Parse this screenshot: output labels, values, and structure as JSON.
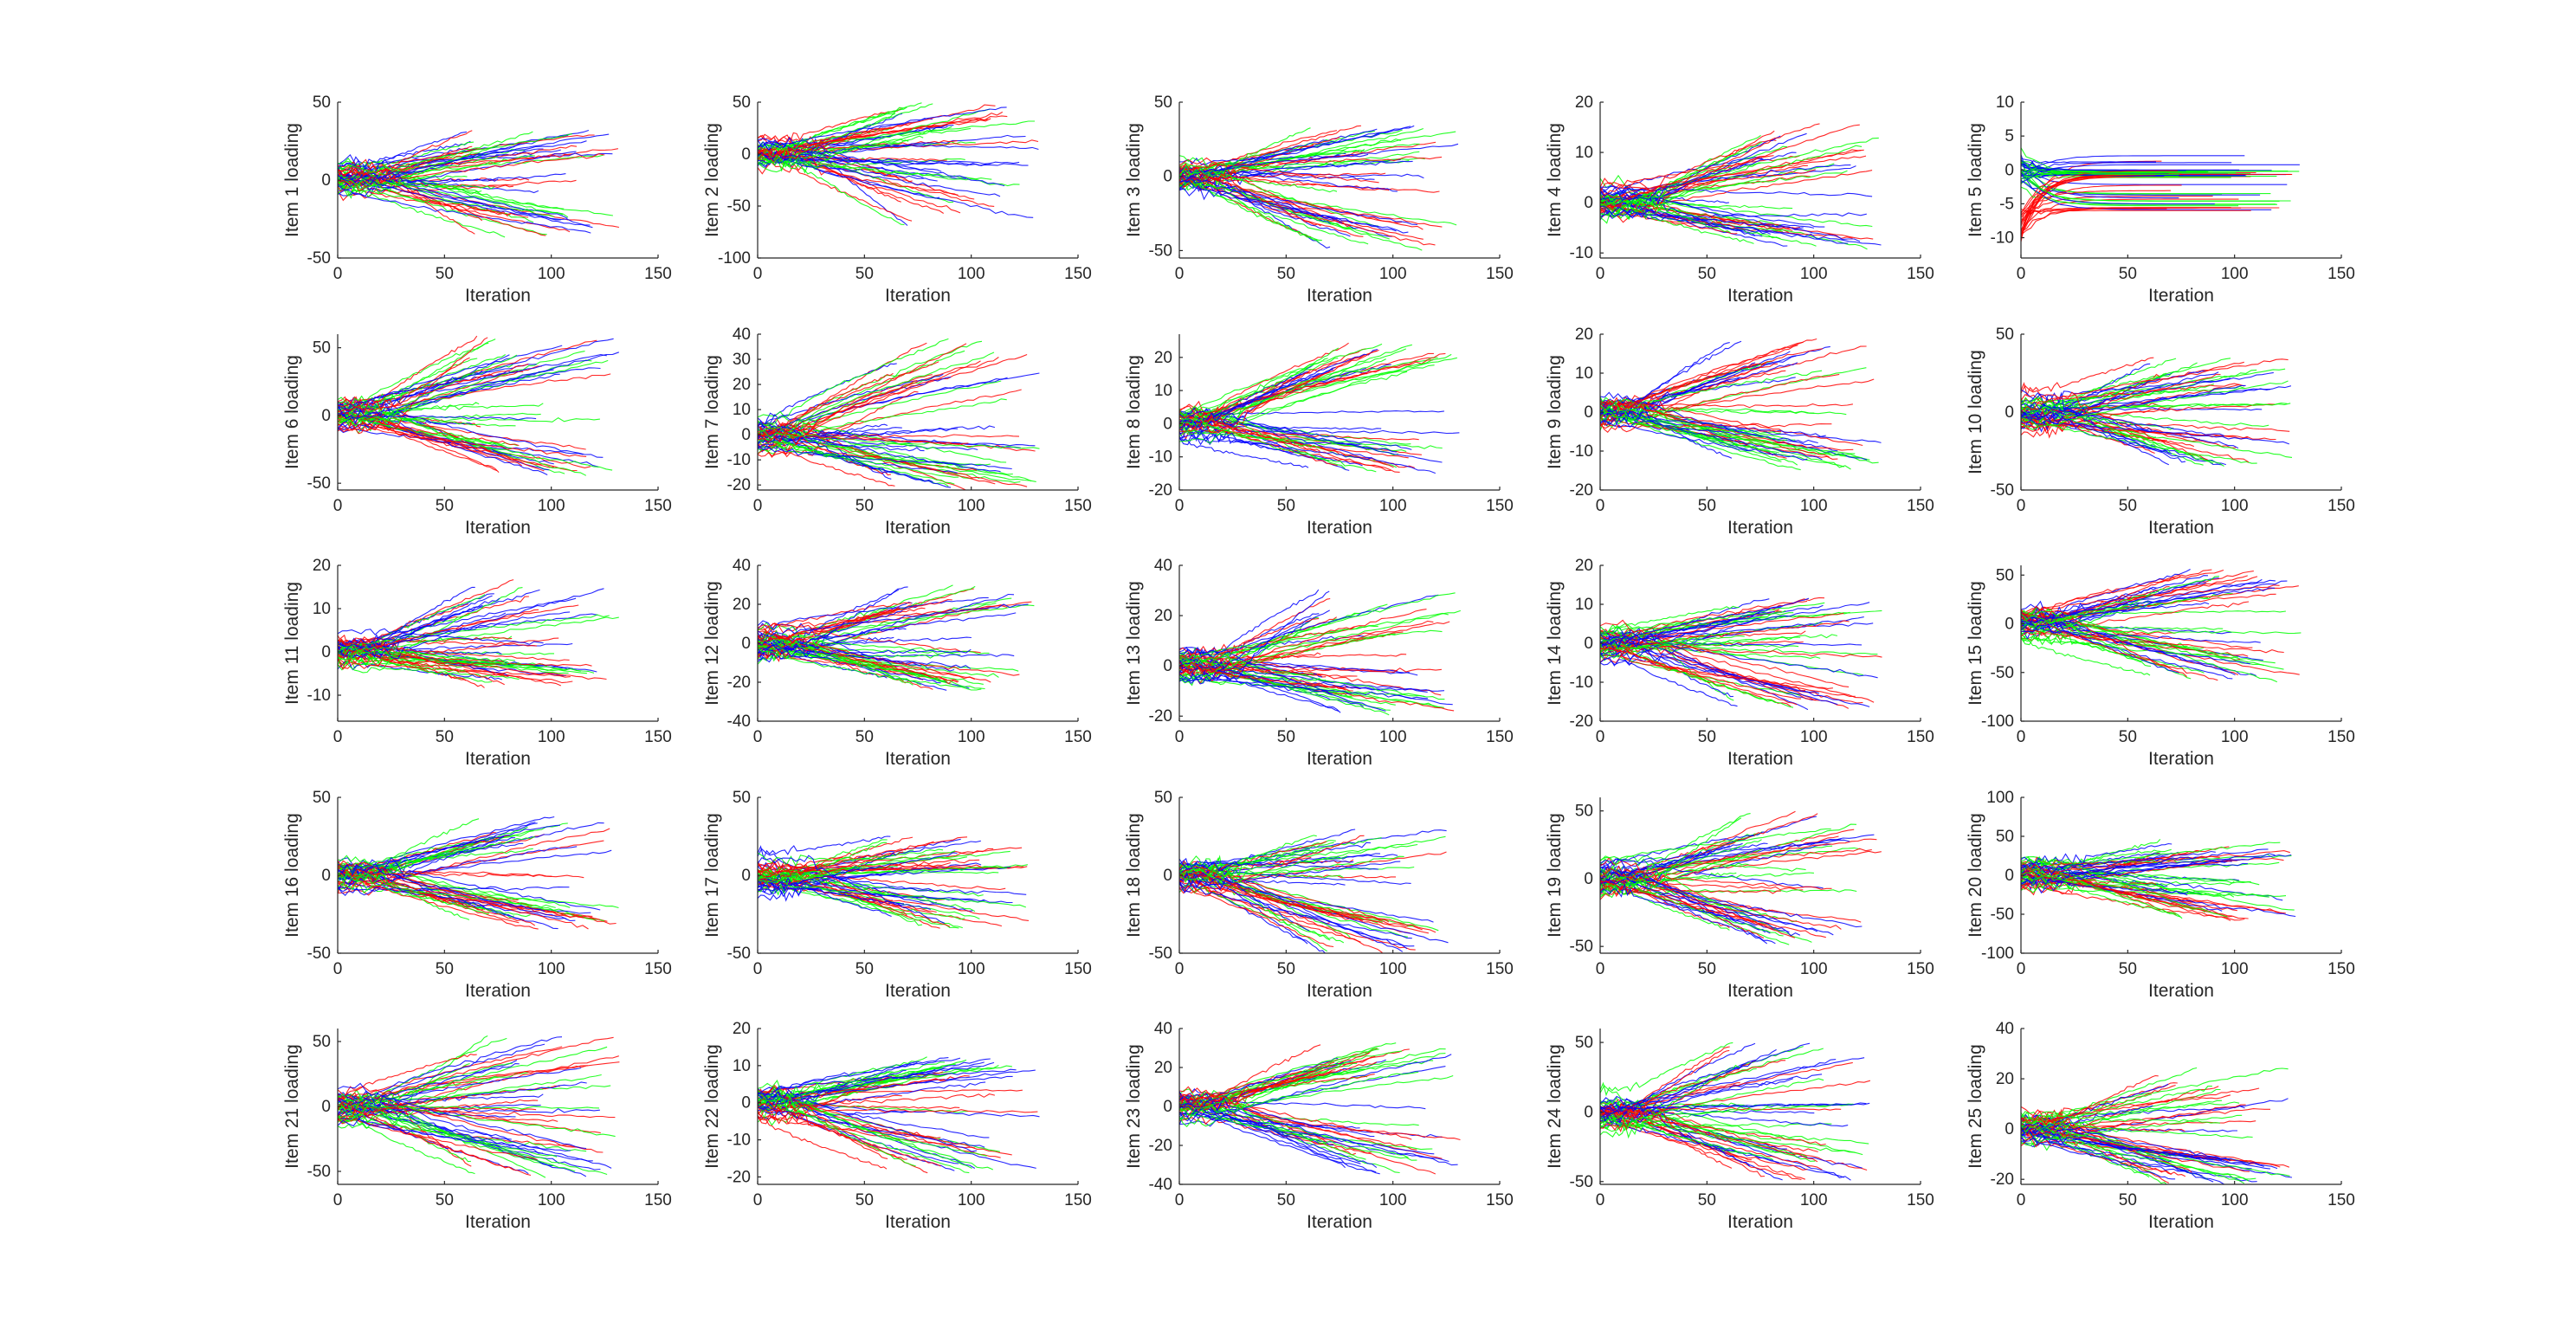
{
  "chart_data": {
    "type": "line",
    "layout": "5x5 grid of small-multiple line plots",
    "line_colors": {
      "red": "#ff0000",
      "green": "#00ff00",
      "blue": "#0000ff"
    },
    "note_series": "Each panel shows many overlaid trajectories (red, green, blue) fanning out from near 0 as iteration increases; trajectories end between about iteration 60 and 130.",
    "xlabel": "Iteration",
    "xlim": [
      0,
      150
    ],
    "xticks": [
      0,
      50,
      100,
      150
    ],
    "panels": [
      {
        "ylabel": "Item 1 loading",
        "ylim": [
          -50,
          50
        ],
        "yticks": [
          -50,
          0,
          50
        ],
        "upper": [
          15,
          32
        ],
        "lower": [
          -36,
          -18
        ],
        "conv": "sym"
      },
      {
        "ylabel": "Item 2 loading",
        "ylim": [
          -100,
          50
        ],
        "yticks": [
          -100,
          -50,
          0,
          50
        ],
        "upper": [
          10,
          50
        ],
        "lower": [
          -70,
          -15
        ],
        "conv": "sym"
      },
      {
        "ylabel": "Item 3 loading",
        "ylim": [
          -55,
          50
        ],
        "yticks": [
          -50,
          0,
          50
        ],
        "upper": [
          10,
          35
        ],
        "lower": [
          -50,
          -30
        ],
        "conv": "sym"
      },
      {
        "ylabel": "Item 4 loading",
        "ylim": [
          -11,
          20
        ],
        "yticks": [
          -10,
          0,
          10,
          20
        ],
        "upper": [
          5,
          16
        ],
        "lower": [
          -9,
          -4
        ],
        "conv": "sym"
      },
      {
        "ylabel": "Item 5 loading",
        "ylim": [
          -13,
          10
        ],
        "yticks": [
          -10,
          -5,
          0,
          5,
          10
        ],
        "upper": [
          -1,
          0
        ],
        "lower": [
          -6,
          -3
        ],
        "conv": "item5"
      },
      {
        "ylabel": "Item 6 loading",
        "ylim": [
          -55,
          60
        ],
        "yticks": [
          -50,
          0,
          50
        ],
        "upper": [
          30,
          58
        ],
        "lower": [
          -45,
          -20
        ],
        "conv": "sym"
      },
      {
        "ylabel": "Item 7 loading",
        "ylim": [
          -22,
          40
        ],
        "yticks": [
          -20,
          -10,
          0,
          10,
          20,
          30,
          40
        ],
        "upper": [
          12,
          38
        ],
        "lower": [
          -22,
          -5
        ],
        "conv": "sym"
      },
      {
        "ylabel": "Item 8 loading",
        "ylim": [
          -20,
          27
        ],
        "yticks": [
          -20,
          -10,
          0,
          10,
          20
        ],
        "upper": [
          15,
          24
        ],
        "lower": [
          -15,
          -5
        ],
        "conv": "sym"
      },
      {
        "ylabel": "Item 9 loading",
        "ylim": [
          -20,
          20
        ],
        "yticks": [
          -20,
          -10,
          0,
          10,
          20
        ],
        "upper": [
          8,
          19
        ],
        "lower": [
          -15,
          -5
        ],
        "conv": "sym"
      },
      {
        "ylabel": "Item 10 loading",
        "ylim": [
          -50,
          50
        ],
        "yticks": [
          -50,
          0,
          50
        ],
        "upper": [
          15,
          35
        ],
        "lower": [
          -35,
          -10
        ],
        "conv": "sym"
      },
      {
        "ylabel": "Item 11 loading",
        "ylim": [
          -16,
          20
        ],
        "yticks": [
          -10,
          0,
          10,
          20
        ],
        "upper": [
          8,
          17
        ],
        "lower": [
          -8,
          -2
        ],
        "conv": "sym"
      },
      {
        "ylabel": "Item 12 loading",
        "ylim": [
          -40,
          40
        ],
        "yticks": [
          -40,
          -20,
          0,
          20,
          40
        ],
        "upper": [
          15,
          30
        ],
        "lower": [
          -25,
          -10
        ],
        "conv": "sym"
      },
      {
        "ylabel": "Item 13 loading",
        "ylim": [
          -22,
          40
        ],
        "yticks": [
          -20,
          0,
          20,
          40
        ],
        "upper": [
          10,
          30
        ],
        "lower": [
          -20,
          -8
        ],
        "conv": "sym"
      },
      {
        "ylabel": "Item 14 loading",
        "ylim": [
          -20,
          20
        ],
        "yticks": [
          -20,
          -10,
          0,
          10,
          20
        ],
        "upper": [
          5,
          12
        ],
        "lower": [
          -17,
          -8
        ],
        "conv": "sym"
      },
      {
        "ylabel": "Item 15 loading",
        "ylim": [
          -100,
          60
        ],
        "yticks": [
          -100,
          -50,
          0,
          50
        ],
        "upper": [
          20,
          55
        ],
        "lower": [
          -60,
          -20
        ],
        "conv": "sym"
      },
      {
        "ylabel": "Item 16 loading",
        "ylim": [
          -50,
          50
        ],
        "yticks": [
          -50,
          0,
          50
        ],
        "upper": [
          15,
          38
        ],
        "lower": [
          -35,
          -15
        ],
        "conv": "sym"
      },
      {
        "ylabel": "Item 17 loading",
        "ylim": [
          -50,
          50
        ],
        "yticks": [
          -50,
          0,
          50
        ],
        "upper": [
          5,
          25
        ],
        "lower": [
          -35,
          -10
        ],
        "conv": "sym"
      },
      {
        "ylabel": "Item 18 loading",
        "ylim": [
          -50,
          50
        ],
        "yticks": [
          -50,
          0,
          50
        ],
        "upper": [
          10,
          30
        ],
        "lower": [
          -50,
          -25
        ],
        "conv": "sym"
      },
      {
        "ylabel": "Item 19 loading",
        "ylim": [
          -55,
          60
        ],
        "yticks": [
          -50,
          0,
          50
        ],
        "upper": [
          20,
          50
        ],
        "lower": [
          -50,
          -25
        ],
        "conv": "sym"
      },
      {
        "ylabel": "Item 20 loading",
        "ylim": [
          -100,
          100
        ],
        "yticks": [
          -100,
          -50,
          0,
          50,
          100
        ],
        "upper": [
          15,
          45
        ],
        "lower": [
          -60,
          -20
        ],
        "conv": "sym"
      },
      {
        "ylabel": "Item 21 loading",
        "ylim": [
          -60,
          60
        ],
        "yticks": [
          -50,
          0,
          50
        ],
        "upper": [
          15,
          55
        ],
        "lower": [
          -55,
          -20
        ],
        "conv": "sym"
      },
      {
        "ylabel": "Item 22 loading",
        "ylim": [
          -22,
          20
        ],
        "yticks": [
          -20,
          -10,
          0,
          10,
          20
        ],
        "upper": [
          5,
          12
        ],
        "lower": [
          -20,
          -8
        ],
        "conv": "sym"
      },
      {
        "ylabel": "Item 23 loading",
        "ylim": [
          -40,
          40
        ],
        "yticks": [
          -40,
          -20,
          0,
          20,
          40
        ],
        "upper": [
          15,
          33
        ],
        "lower": [
          -35,
          -10
        ],
        "conv": "sym"
      },
      {
        "ylabel": "Item 24 loading",
        "ylim": [
          -52,
          60
        ],
        "yticks": [
          -50,
          0,
          50
        ],
        "upper": [
          20,
          50
        ],
        "lower": [
          -50,
          -20
        ],
        "conv": "sym"
      },
      {
        "ylabel": "Item 25 loading",
        "ylim": [
          -22,
          40
        ],
        "yticks": [
          -20,
          0,
          20,
          40
        ],
        "upper": [
          8,
          25
        ],
        "lower": [
          -22,
          -10
        ],
        "conv": "sym"
      }
    ]
  }
}
